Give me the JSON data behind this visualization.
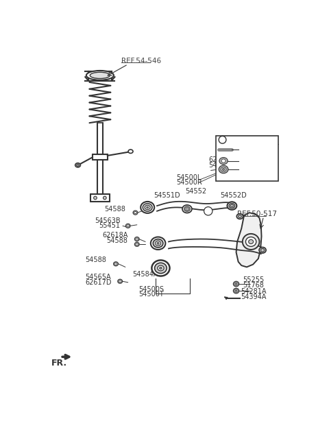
{
  "bg_color": "#ffffff",
  "fig_width": 4.8,
  "fig_height": 6.27,
  "dpi": 100,
  "line_color": "#333333",
  "text_color": "#333333",
  "ref_color": "#333333",
  "parts": {
    "ref_54546": "REF.54-546",
    "ref_50517": "REF.50-517",
    "p54500L": "54500L",
    "p54500R": "54500R",
    "p54551D": "54551D",
    "p54552": "54552",
    "p54552D": "54552D",
    "p54588": "54588",
    "p62618A": "62618A",
    "p54563B": "54563B",
    "p55451": "55451",
    "p54584A": "54584A",
    "p54565A": "54565A",
    "p62617D": "62617D",
    "p54500S": "54500S",
    "p54500T": "54500T",
    "p55255": "55255",
    "p51768": "51768",
    "p54281A": "54281A",
    "p54394A": "54394A",
    "fr_label": "FR."
  }
}
